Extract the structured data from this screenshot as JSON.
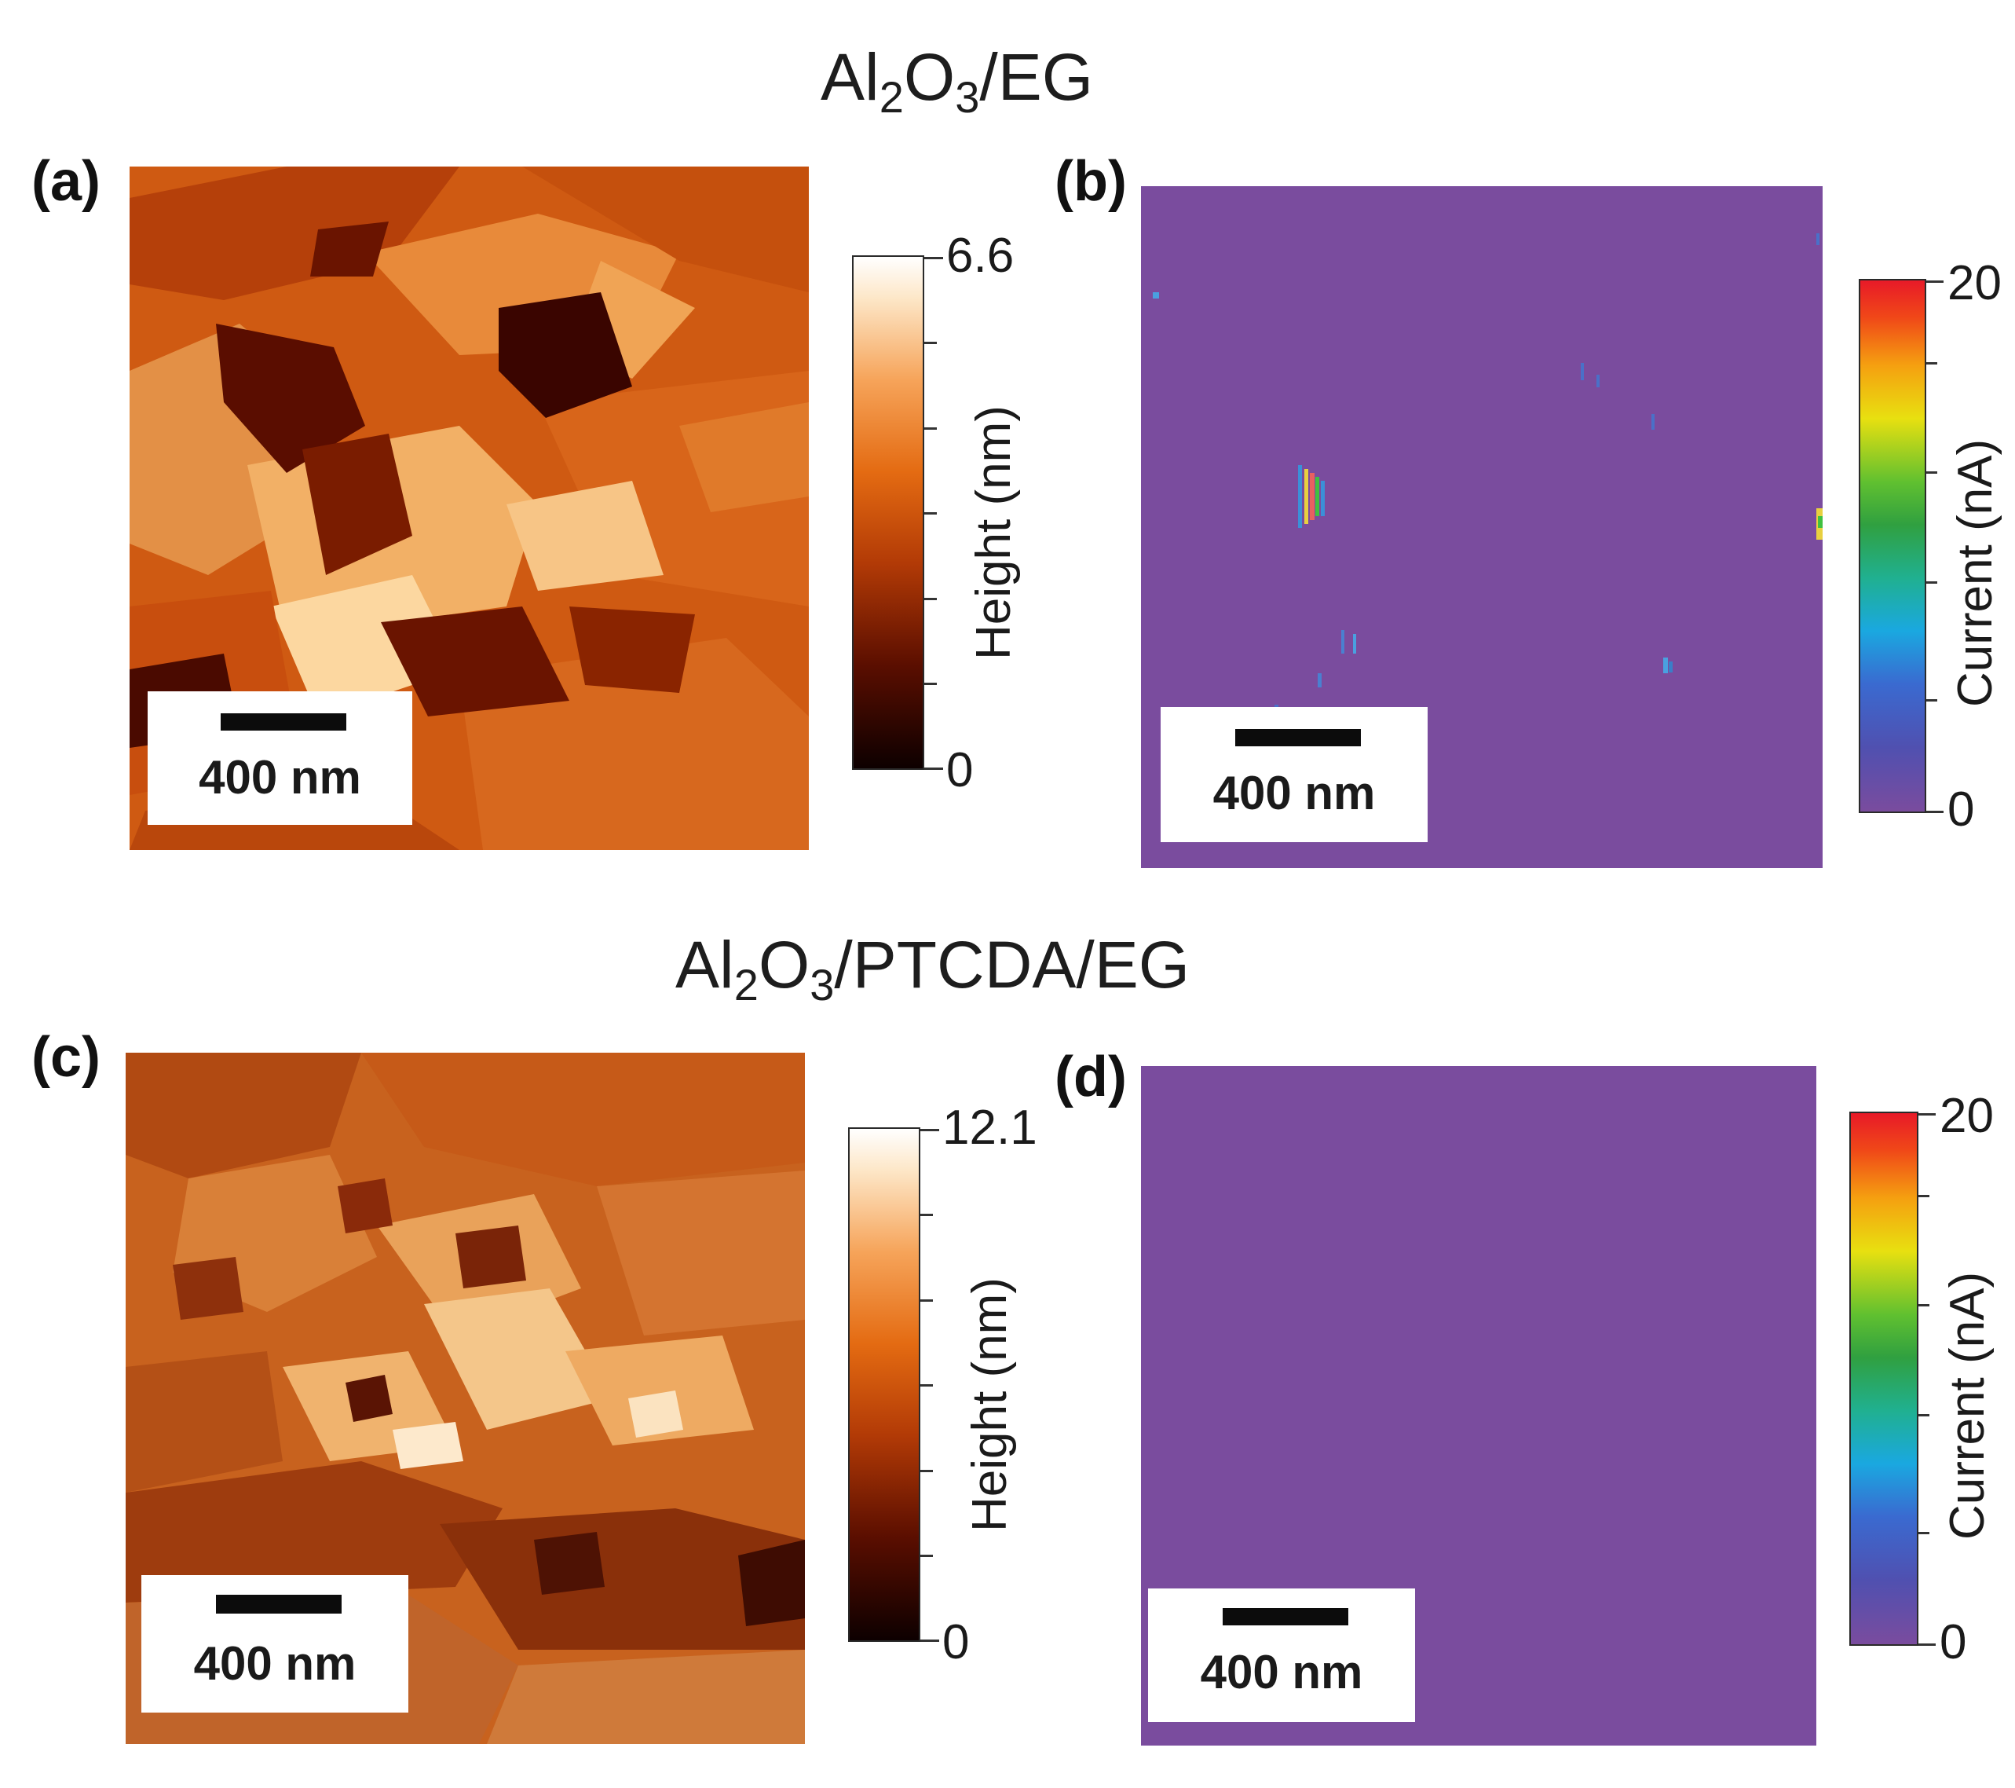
{
  "rows": [
    {
      "title_main": "Al",
      "title_sub1": "2",
      "title_mid": "O",
      "title_sub2": "3",
      "title_rest": "/EG"
    },
    {
      "title_main": "Al",
      "title_sub1": "2",
      "title_mid": "O",
      "title_sub2": "3",
      "title_rest": "/PTCDA/EG"
    }
  ],
  "panels": {
    "a": {
      "label": "(a)",
      "scale": "400 nm",
      "cbar_max": "6.6",
      "cbar_min": "0",
      "cbar_label": "Height (nm)"
    },
    "b": {
      "label": "(b)",
      "scale": "400 nm",
      "cbar_max": "20",
      "cbar_min": "0",
      "cbar_label": "Current (nA)"
    },
    "c": {
      "label": "(c)",
      "scale": "400 nm",
      "cbar_max": "12.1",
      "cbar_min": "0",
      "cbar_label": "Height (nm)"
    },
    "d": {
      "label": "(d)",
      "scale": "400 nm",
      "cbar_max": "20",
      "cbar_min": "0",
      "cbar_label": "Current (nA)"
    }
  },
  "colors": {
    "current_background": "#7a4c9e",
    "height_dark": "#0d0000",
    "height_mid": "#d9570a",
    "height_light": "#fffaf0"
  }
}
